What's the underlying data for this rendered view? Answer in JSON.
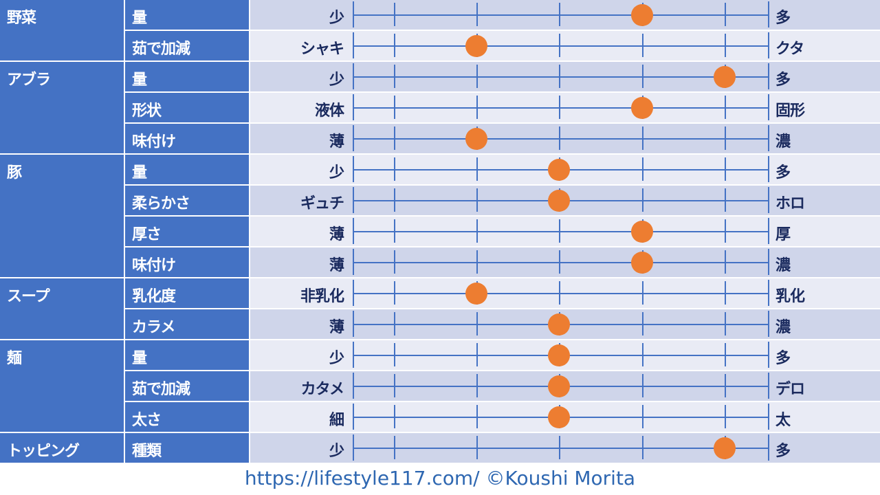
{
  "scale_steps": 5,
  "colors": {
    "header": "#4472c4",
    "row_odd": "#cfd5ea",
    "row_even": "#e9ebf5",
    "dot": "#ed7d31",
    "text_dark": "#1a2a5e"
  },
  "categories": [
    {
      "name": "野菜",
      "items": [
        {
          "label": "量",
          "left": "少",
          "right": "多",
          "value": 4
        },
        {
          "label": "茹で加減",
          "left": "シャキ",
          "right": "クタ",
          "value": 2
        }
      ]
    },
    {
      "name": "アブラ",
      "items": [
        {
          "label": "量",
          "left": "少",
          "right": "多",
          "value": 5
        },
        {
          "label": "形状",
          "left": "液体",
          "right": "固形",
          "value": 4
        },
        {
          "label": "味付け",
          "left": "薄",
          "right": "濃",
          "value": 2
        }
      ]
    },
    {
      "name": "豚",
      "items": [
        {
          "label": "量",
          "left": "少",
          "right": "多",
          "value": 3
        },
        {
          "label": "柔らかさ",
          "left": "ギュチ",
          "right": "ホロ",
          "value": 3
        },
        {
          "label": "厚さ",
          "left": "薄",
          "right": "厚",
          "value": 4
        },
        {
          "label": "味付け",
          "left": "薄",
          "right": "濃",
          "value": 4
        }
      ]
    },
    {
      "name": "スープ",
      "items": [
        {
          "label": "乳化度",
          "left": "非乳化",
          "right": "乳化",
          "value": 2
        },
        {
          "label": "カラメ",
          "left": "薄",
          "right": "濃",
          "value": 3
        }
      ]
    },
    {
      "name": "麺",
      "items": [
        {
          "label": "量",
          "left": "少",
          "right": "多",
          "value": 3
        },
        {
          "label": "茹で加減",
          "left": "カタメ",
          "right": "デロ",
          "value": 3
        },
        {
          "label": "太さ",
          "left": "細",
          "right": "太",
          "value": 3
        }
      ]
    },
    {
      "name": "トッピング",
      "items": [
        {
          "label": "種類",
          "left": "少",
          "right": "多",
          "value": 5
        }
      ]
    }
  ],
  "footer": "https://lifestyle117.com/  ©Koushi Morita"
}
